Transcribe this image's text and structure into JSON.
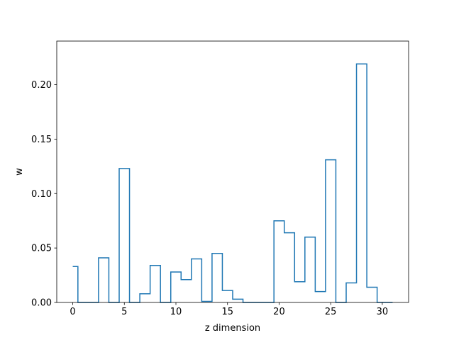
{
  "chart_data": {
    "type": "line",
    "style": "step-outline",
    "xlabel": "z dimension",
    "ylabel": "w",
    "xlim": [
      -1.55,
      32.55
    ],
    "ylim": [
      0,
      0.24
    ],
    "x_ticks": [
      0,
      5,
      10,
      15,
      20,
      25,
      30
    ],
    "y_ticks": [
      0.0,
      0.05,
      0.1,
      0.15,
      0.2
    ],
    "y_tick_labels": [
      "0.00",
      "0.05",
      "0.10",
      "0.15",
      "0.20"
    ],
    "grid": false,
    "series": [
      {
        "color": "#1f77b4",
        "x": [
          0,
          1,
          2,
          3,
          4,
          5,
          6,
          7,
          8,
          9,
          10,
          11,
          12,
          13,
          14,
          15,
          16,
          17,
          18,
          19,
          20,
          21,
          22,
          23,
          24,
          25,
          26,
          27,
          28,
          29,
          30,
          31
        ],
        "values": [
          0.033,
          0.0,
          0.0,
          0.041,
          0.0,
          0.123,
          0.0,
          0.008,
          0.034,
          0.0,
          0.028,
          0.021,
          0.04,
          0.001,
          0.045,
          0.011,
          0.003,
          0.0,
          0.0,
          0.0,
          0.075,
          0.064,
          0.019,
          0.06,
          0.01,
          0.131,
          0.0,
          0.018,
          0.219,
          0.014,
          0.0,
          0.0
        ]
      }
    ]
  }
}
